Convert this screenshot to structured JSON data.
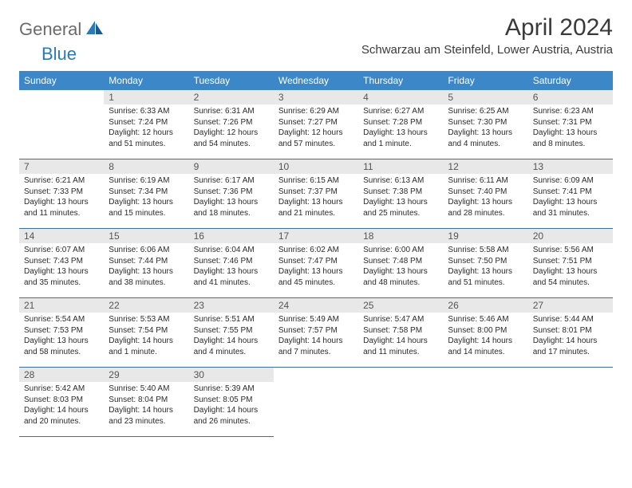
{
  "logo": {
    "text1": "General",
    "text2": "Blue"
  },
  "title": "April 2024",
  "location": "Schwarzau am Steinfeld, Lower Austria, Austria",
  "colors": {
    "header_bg": "#3b87c8",
    "header_text": "#ffffff",
    "daybar_bg": "#e8e8e8",
    "daybar_text": "#555555",
    "body_text": "#2a2a2a",
    "rule": "#3b6fa0",
    "logo_gray": "#6b6b6b",
    "logo_blue": "#2a7ab8"
  },
  "weekdays": [
    "Sunday",
    "Monday",
    "Tuesday",
    "Wednesday",
    "Thursday",
    "Friday",
    "Saturday"
  ],
  "start_offset": 1,
  "days": [
    {
      "n": "1",
      "sr": "Sunrise: 6:33 AM",
      "ss": "Sunset: 7:24 PM",
      "dl1": "Daylight: 12 hours",
      "dl2": "and 51 minutes."
    },
    {
      "n": "2",
      "sr": "Sunrise: 6:31 AM",
      "ss": "Sunset: 7:26 PM",
      "dl1": "Daylight: 12 hours",
      "dl2": "and 54 minutes."
    },
    {
      "n": "3",
      "sr": "Sunrise: 6:29 AM",
      "ss": "Sunset: 7:27 PM",
      "dl1": "Daylight: 12 hours",
      "dl2": "and 57 minutes."
    },
    {
      "n": "4",
      "sr": "Sunrise: 6:27 AM",
      "ss": "Sunset: 7:28 PM",
      "dl1": "Daylight: 13 hours",
      "dl2": "and 1 minute."
    },
    {
      "n": "5",
      "sr": "Sunrise: 6:25 AM",
      "ss": "Sunset: 7:30 PM",
      "dl1": "Daylight: 13 hours",
      "dl2": "and 4 minutes."
    },
    {
      "n": "6",
      "sr": "Sunrise: 6:23 AM",
      "ss": "Sunset: 7:31 PM",
      "dl1": "Daylight: 13 hours",
      "dl2": "and 8 minutes."
    },
    {
      "n": "7",
      "sr": "Sunrise: 6:21 AM",
      "ss": "Sunset: 7:33 PM",
      "dl1": "Daylight: 13 hours",
      "dl2": "and 11 minutes."
    },
    {
      "n": "8",
      "sr": "Sunrise: 6:19 AM",
      "ss": "Sunset: 7:34 PM",
      "dl1": "Daylight: 13 hours",
      "dl2": "and 15 minutes."
    },
    {
      "n": "9",
      "sr": "Sunrise: 6:17 AM",
      "ss": "Sunset: 7:36 PM",
      "dl1": "Daylight: 13 hours",
      "dl2": "and 18 minutes."
    },
    {
      "n": "10",
      "sr": "Sunrise: 6:15 AM",
      "ss": "Sunset: 7:37 PM",
      "dl1": "Daylight: 13 hours",
      "dl2": "and 21 minutes."
    },
    {
      "n": "11",
      "sr": "Sunrise: 6:13 AM",
      "ss": "Sunset: 7:38 PM",
      "dl1": "Daylight: 13 hours",
      "dl2": "and 25 minutes."
    },
    {
      "n": "12",
      "sr": "Sunrise: 6:11 AM",
      "ss": "Sunset: 7:40 PM",
      "dl1": "Daylight: 13 hours",
      "dl2": "and 28 minutes."
    },
    {
      "n": "13",
      "sr": "Sunrise: 6:09 AM",
      "ss": "Sunset: 7:41 PM",
      "dl1": "Daylight: 13 hours",
      "dl2": "and 31 minutes."
    },
    {
      "n": "14",
      "sr": "Sunrise: 6:07 AM",
      "ss": "Sunset: 7:43 PM",
      "dl1": "Daylight: 13 hours",
      "dl2": "and 35 minutes."
    },
    {
      "n": "15",
      "sr": "Sunrise: 6:06 AM",
      "ss": "Sunset: 7:44 PM",
      "dl1": "Daylight: 13 hours",
      "dl2": "and 38 minutes."
    },
    {
      "n": "16",
      "sr": "Sunrise: 6:04 AM",
      "ss": "Sunset: 7:46 PM",
      "dl1": "Daylight: 13 hours",
      "dl2": "and 41 minutes."
    },
    {
      "n": "17",
      "sr": "Sunrise: 6:02 AM",
      "ss": "Sunset: 7:47 PM",
      "dl1": "Daylight: 13 hours",
      "dl2": "and 45 minutes."
    },
    {
      "n": "18",
      "sr": "Sunrise: 6:00 AM",
      "ss": "Sunset: 7:48 PM",
      "dl1": "Daylight: 13 hours",
      "dl2": "and 48 minutes."
    },
    {
      "n": "19",
      "sr": "Sunrise: 5:58 AM",
      "ss": "Sunset: 7:50 PM",
      "dl1": "Daylight: 13 hours",
      "dl2": "and 51 minutes."
    },
    {
      "n": "20",
      "sr": "Sunrise: 5:56 AM",
      "ss": "Sunset: 7:51 PM",
      "dl1": "Daylight: 13 hours",
      "dl2": "and 54 minutes."
    },
    {
      "n": "21",
      "sr": "Sunrise: 5:54 AM",
      "ss": "Sunset: 7:53 PM",
      "dl1": "Daylight: 13 hours",
      "dl2": "and 58 minutes."
    },
    {
      "n": "22",
      "sr": "Sunrise: 5:53 AM",
      "ss": "Sunset: 7:54 PM",
      "dl1": "Daylight: 14 hours",
      "dl2": "and 1 minute."
    },
    {
      "n": "23",
      "sr": "Sunrise: 5:51 AM",
      "ss": "Sunset: 7:55 PM",
      "dl1": "Daylight: 14 hours",
      "dl2": "and 4 minutes."
    },
    {
      "n": "24",
      "sr": "Sunrise: 5:49 AM",
      "ss": "Sunset: 7:57 PM",
      "dl1": "Daylight: 14 hours",
      "dl2": "and 7 minutes."
    },
    {
      "n": "25",
      "sr": "Sunrise: 5:47 AM",
      "ss": "Sunset: 7:58 PM",
      "dl1": "Daylight: 14 hours",
      "dl2": "and 11 minutes."
    },
    {
      "n": "26",
      "sr": "Sunrise: 5:46 AM",
      "ss": "Sunset: 8:00 PM",
      "dl1": "Daylight: 14 hours",
      "dl2": "and 14 minutes."
    },
    {
      "n": "27",
      "sr": "Sunrise: 5:44 AM",
      "ss": "Sunset: 8:01 PM",
      "dl1": "Daylight: 14 hours",
      "dl2": "and 17 minutes."
    },
    {
      "n": "28",
      "sr": "Sunrise: 5:42 AM",
      "ss": "Sunset: 8:03 PM",
      "dl1": "Daylight: 14 hours",
      "dl2": "and 20 minutes."
    },
    {
      "n": "29",
      "sr": "Sunrise: 5:40 AM",
      "ss": "Sunset: 8:04 PM",
      "dl1": "Daylight: 14 hours",
      "dl2": "and 23 minutes."
    },
    {
      "n": "30",
      "sr": "Sunrise: 5:39 AM",
      "ss": "Sunset: 8:05 PM",
      "dl1": "Daylight: 14 hours",
      "dl2": "and 26 minutes."
    }
  ]
}
